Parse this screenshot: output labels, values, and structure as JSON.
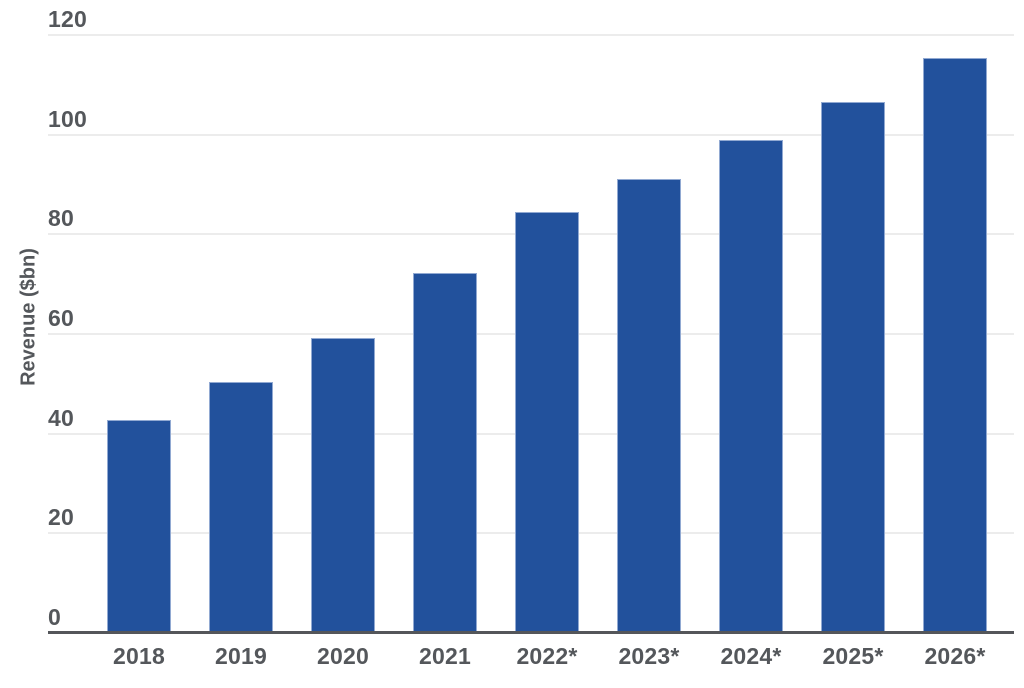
{
  "chart_data": {
    "type": "bar",
    "ylabel": "Revenue ($bn)",
    "xlabel": "",
    "categories": [
      "2018",
      "2019",
      "2020",
      "2021",
      "2022*",
      "2023*",
      "2024*",
      "2025*",
      "2026*"
    ],
    "values": [
      42.7,
      50.4,
      59.2,
      72.2,
      84.4,
      91.1,
      99.0,
      106.6,
      115.3
    ],
    "ylim": [
      0,
      120
    ],
    "yticks": [
      0,
      20,
      40,
      60,
      80,
      100,
      120
    ],
    "grid": true,
    "legend": false,
    "colors": {
      "bar_fill": "#22519c",
      "bar_border": "#91a9d2",
      "gridline": "#ececec",
      "axis_line": "#54565a",
      "text": "#54575b"
    }
  }
}
